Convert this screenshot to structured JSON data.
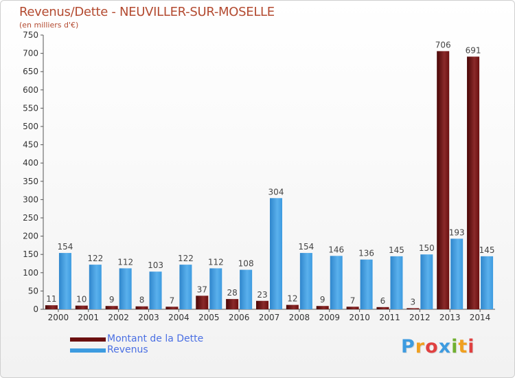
{
  "page": {
    "title": "Revenus/Dette - NEUVILLER-SUR-MOSELLE",
    "subtitle": "(en milliers d'€)"
  },
  "chart_data": {
    "type": "bar",
    "title": "Revenus/Dette - NEUVILLER-SUR-MOSELLE",
    "subtitle": "(en milliers d'€)",
    "xlabel": "",
    "ylabel": "",
    "ylim": [
      0,
      750
    ],
    "yticks": [
      0,
      50,
      100,
      150,
      200,
      250,
      300,
      350,
      400,
      450,
      500,
      550,
      600,
      650,
      700,
      750
    ],
    "grid": false,
    "legend_position": "bottom-left",
    "categories": [
      "2000",
      "2001",
      "2002",
      "2003",
      "2004",
      "2005",
      "2006",
      "2007",
      "2008",
      "2009",
      "2010",
      "2011",
      "2012",
      "2013",
      "2014"
    ],
    "series": [
      {
        "name": "Montant de la Dette",
        "color": "#6b0f0f",
        "values": [
          11,
          10,
          9,
          8,
          7,
          37,
          28,
          23,
          12,
          9,
          7,
          6,
          3,
          706,
          691
        ]
      },
      {
        "name": "Revenus",
        "color": "#3d9be0",
        "values": [
          154,
          122,
          112,
          103,
          122,
          112,
          108,
          304,
          154,
          146,
          136,
          145,
          150,
          193,
          145
        ]
      }
    ]
  },
  "legend": {
    "items": [
      {
        "label": "Montant de la Dette",
        "color": "#6b0f0f"
      },
      {
        "label": "Revenus",
        "color": "#3d9be0"
      }
    ]
  },
  "logo": {
    "letters": [
      "P",
      "r",
      "o",
      "x",
      "i",
      "t",
      "i"
    ],
    "colors": [
      "#3d9be0",
      "#f0a020",
      "#e04040",
      "#3d9be0",
      "#70b030",
      "#f0a020",
      "#e04040"
    ]
  }
}
